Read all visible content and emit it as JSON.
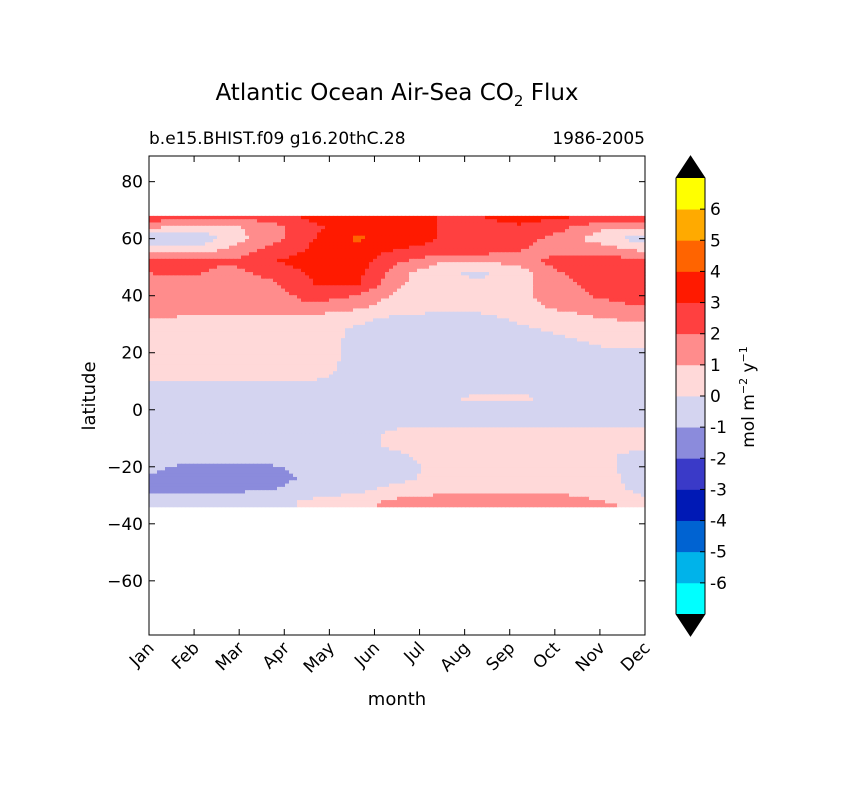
{
  "chart_data": {
    "type": "heatmap",
    "title_main": "Atlantic Ocean Air-Sea CO",
    "title_sub": "2",
    "title_tail": " Flux",
    "subtitle_left": "b.e15.BHIST.f09 g16.20thC.28",
    "subtitle_right": "1986-2005",
    "xlabel": "month",
    "ylabel": "latitude",
    "x_ticks": [
      "Jan",
      "Feb",
      "Mar",
      "Apr",
      "May",
      "Jun",
      "Jul",
      "Aug",
      "Sep",
      "Oct",
      "Nov",
      "Dec"
    ],
    "y_ticks": [
      80,
      60,
      40,
      20,
      0,
      -20,
      -40,
      -60
    ],
    "y_tick_labels": [
      "80",
      "60",
      "40",
      "20",
      "0",
      "−20",
      "−40",
      "−60"
    ],
    "ylim": [
      -79,
      89
    ],
    "data_lat_range": [
      -34,
      68
    ],
    "colorbar": {
      "label_main": "mol m",
      "label_exp1": "−2",
      "label_mid": " y",
      "label_exp2": "−1",
      "levels": [
        -7,
        -6,
        -5,
        -4,
        -3,
        -2,
        -1,
        0,
        1,
        2,
        3,
        4,
        5,
        6,
        7
      ],
      "tick_labels": [
        "-6",
        "-5",
        "-4",
        "-3",
        "-2",
        "-1",
        "0",
        "1",
        "2",
        "3",
        "4",
        "5",
        "6"
      ],
      "colors": [
        "#00ffff",
        "#00b3ea",
        "#0063d2",
        "#0019b5",
        "#3a3ac8",
        "#8b8bdc",
        "#d4d4f0",
        "#ffd9d9",
        "#ff8c8c",
        "#ff4040",
        "#ff1a00",
        "#ff6400",
        "#ffaa00",
        "#ffff00"
      ],
      "extend_color": "#000000"
    },
    "field": {
      "lats": [
        68,
        64,
        60,
        56,
        52,
        48,
        44,
        40,
        36,
        32,
        28,
        24,
        20,
        16,
        12,
        8,
        4,
        0,
        -4,
        -8,
        -12,
        -16,
        -20,
        -24,
        -28,
        -32,
        -34
      ],
      "rows": [
        [
          2.8,
          2.6,
          2.4,
          2.6,
          3.4,
          3.8,
          3.4,
          3.0,
          3.0,
          3.6,
          3.2,
          3.0,
          3.0
        ],
        [
          1.2,
          0.6,
          0.8,
          1.6,
          2.8,
          3.6,
          3.6,
          3.0,
          2.6,
          2.8,
          2.2,
          1.2,
          1.2
        ],
        [
          -0.8,
          -1.2,
          0.6,
          1.6,
          3.0,
          4.2,
          3.6,
          3.0,
          2.6,
          2.4,
          1.6,
          0.4,
          -0.6
        ],
        [
          0.6,
          0.4,
          1.2,
          2.4,
          3.2,
          3.4,
          3.0,
          2.6,
          2.6,
          2.0,
          1.4,
          1.6,
          0.8
        ],
        [
          2.2,
          2.2,
          2.2,
          3.0,
          3.4,
          3.6,
          2.2,
          1.2,
          1.0,
          1.4,
          2.6,
          2.6,
          2.2
        ],
        [
          2.0,
          2.2,
          1.6,
          2.4,
          3.2,
          3.4,
          1.4,
          0.2,
          -0.2,
          0.6,
          2.0,
          2.6,
          2.2
        ],
        [
          1.8,
          1.6,
          1.2,
          1.8,
          3.0,
          3.2,
          1.2,
          0.2,
          0.2,
          0.6,
          1.8,
          2.4,
          3.0
        ],
        [
          1.6,
          1.4,
          1.4,
          1.6,
          2.4,
          2.0,
          0.8,
          0.4,
          0.4,
          0.8,
          1.6,
          2.2,
          2.6
        ],
        [
          2.0,
          1.8,
          1.6,
          1.6,
          1.8,
          1.2,
          0.4,
          0.3,
          0.3,
          0.7,
          1.2,
          1.6,
          2.0
        ],
        [
          0.9,
          0.8,
          0.8,
          0.8,
          0.6,
          0.2,
          -0.2,
          -0.3,
          -0.3,
          0.2,
          0.6,
          1.0,
          1.2
        ],
        [
          0.6,
          0.6,
          0.6,
          0.5,
          0.3,
          -0.1,
          -0.3,
          -0.4,
          -0.4,
          -0.2,
          0.2,
          0.6,
          0.6
        ],
        [
          0.6,
          0.6,
          0.6,
          0.6,
          0.4,
          -0.2,
          -0.4,
          -0.4,
          -0.4,
          -0.4,
          -0.2,
          0.2,
          0.2
        ],
        [
          0.5,
          0.5,
          0.5,
          0.5,
          0.4,
          -0.2,
          -0.4,
          -0.4,
          -0.4,
          -0.4,
          -0.4,
          -0.2,
          -0.2
        ],
        [
          0.4,
          0.4,
          0.4,
          0.4,
          0.4,
          -0.3,
          -0.4,
          -0.4,
          -0.4,
          -0.4,
          -0.4,
          -0.3,
          -0.3
        ],
        [
          0.3,
          0.3,
          0.3,
          0.3,
          0.2,
          -0.3,
          -0.4,
          -0.4,
          -0.4,
          -0.4,
          -0.4,
          -0.4,
          -0.4
        ],
        [
          -0.2,
          -0.2,
          -0.2,
          -0.2,
          -0.3,
          -0.4,
          -0.4,
          -0.4,
          -0.4,
          -0.4,
          -0.4,
          -0.4,
          -0.4
        ],
        [
          -0.3,
          -0.3,
          -0.3,
          -0.3,
          -0.3,
          -0.3,
          -0.3,
          -0.2,
          0.2,
          0.2,
          -0.3,
          -0.3,
          -0.3
        ],
        [
          -0.4,
          -0.4,
          -0.4,
          -0.4,
          -0.4,
          -0.4,
          -0.4,
          -0.4,
          -0.4,
          -0.4,
          -0.4,
          -0.4,
          -0.4
        ],
        [
          -0.4,
          -0.4,
          -0.4,
          -0.4,
          -0.4,
          -0.4,
          -0.4,
          -0.3,
          -0.3,
          -0.3,
          -0.3,
          -0.3,
          -0.4
        ],
        [
          -0.4,
          -0.4,
          -0.4,
          -0.4,
          -0.4,
          -0.4,
          0.2,
          0.4,
          0.4,
          0.4,
          0.4,
          0.4,
          0.3
        ],
        [
          -0.4,
          -0.4,
          -0.4,
          -0.4,
          -0.4,
          -0.4,
          0.3,
          0.5,
          0.5,
          0.5,
          0.5,
          0.5,
          0.4
        ],
        [
          -0.5,
          -0.5,
          -0.5,
          -0.4,
          -0.4,
          -0.4,
          -0.2,
          0.4,
          0.5,
          0.5,
          0.5,
          0.2,
          -0.4
        ],
        [
          -0.8,
          -1.2,
          -1.3,
          -1.1,
          -0.6,
          -0.5,
          -0.4,
          0.3,
          0.5,
          0.5,
          0.5,
          0.2,
          -0.5
        ],
        [
          -1.1,
          -1.4,
          -1.4,
          -1.3,
          -0.8,
          -0.6,
          -0.4,
          0.4,
          0.6,
          0.6,
          0.6,
          0.4,
          -0.6
        ],
        [
          -1.2,
          -1.2,
          -1.2,
          -1.0,
          -0.6,
          -0.3,
          0.4,
          0.8,
          0.8,
          0.8,
          0.8,
          0.6,
          -0.5
        ],
        [
          -0.6,
          -0.6,
          -0.5,
          -0.3,
          0.2,
          0.6,
          1.2,
          1.3,
          1.3,
          1.3,
          1.3,
          1.0,
          0.4
        ],
        [
          -0.4,
          -0.4,
          -0.3,
          -0.2,
          0.2,
          0.6,
          1.4,
          1.5,
          1.6,
          2.2,
          1.5,
          1.2,
          0.8
        ]
      ]
    }
  }
}
